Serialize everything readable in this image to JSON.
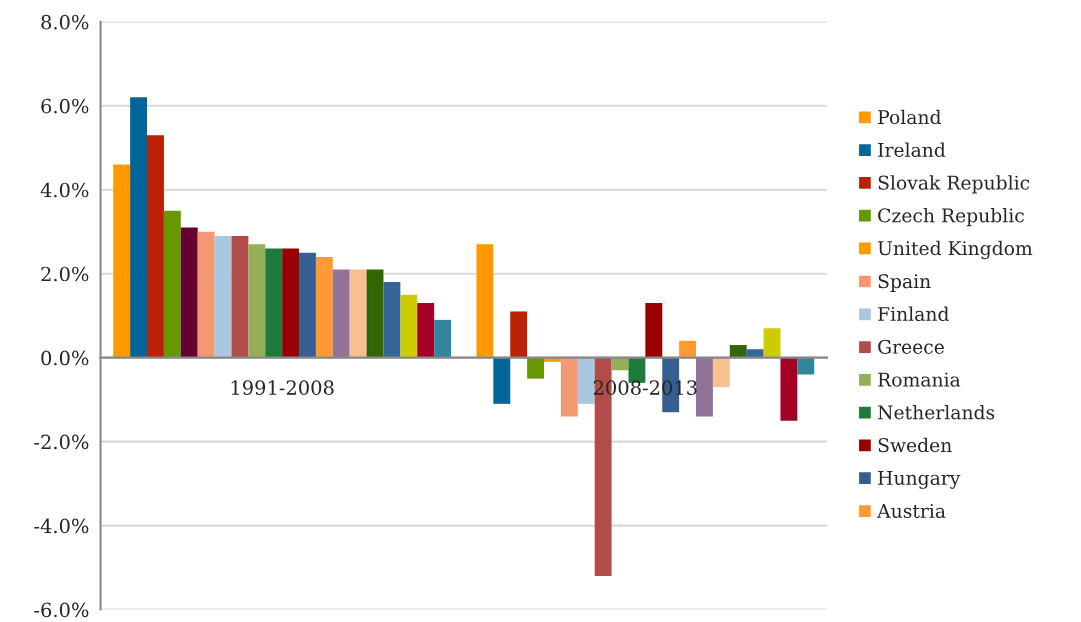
{
  "chart_data": {
    "type": "bar",
    "categories": [
      "1991-2008",
      "2008-2013"
    ],
    "series": [
      {
        "name": "Poland",
        "color": "#ff9900",
        "values": [
          4.6,
          2.7
        ]
      },
      {
        "name": "Ireland",
        "color": "#006699",
        "values": [
          6.2,
          -1.1
        ]
      },
      {
        "name": "Slovak Republic",
        "color": "#bb2205",
        "values": [
          5.3,
          1.1
        ]
      },
      {
        "name": "Czech Republic",
        "color": "#669900",
        "values": [
          3.5,
          -0.5
        ]
      },
      {
        "name": "United Kingdom",
        "color": "#ff9900",
        "colors": [
          "#660033",
          "#ff9900"
        ],
        "values": [
          3.1,
          -0.1
        ]
      },
      {
        "name": "Spain",
        "color": "#f49874",
        "values": [
          3.0,
          -1.4
        ]
      },
      {
        "name": "Finland",
        "color": "#a9c8e0",
        "values": [
          2.9,
          -1.1
        ]
      },
      {
        "name": "Greece",
        "color": "#b24c4a",
        "values": [
          2.9,
          -5.2
        ]
      },
      {
        "name": "Romania",
        "color": "#93b056",
        "values": [
          2.7,
          -0.3
        ]
      },
      {
        "name": "Netherlands",
        "color": "#1e7b3c",
        "values": [
          2.6,
          -0.6
        ]
      },
      {
        "name": "Sweden",
        "color": "#990000",
        "values": [
          2.6,
          1.3
        ]
      },
      {
        "name": "Hungary",
        "color": "#365f91",
        "values": [
          2.5,
          -1.3
        ]
      },
      {
        "name": "Austria",
        "color": "#ff9933",
        "values": [
          2.4,
          0.4
        ]
      },
      {
        "color": "#917299",
        "values": [
          2.1,
          -1.4
        ]
      },
      {
        "color": "#f9c08f",
        "values": [
          2.1,
          -0.7
        ]
      },
      {
        "color": "#336600",
        "values": [
          2.1,
          0.3
        ]
      },
      {
        "color": "#336699",
        "values": [
          1.8,
          0.2
        ]
      },
      {
        "color": "#cccc00",
        "values": [
          1.5,
          0.7
        ]
      },
      {
        "color": "#a50026",
        "values": [
          1.3,
          -1.5
        ]
      },
      {
        "color": "#31859c",
        "values": [
          0.9,
          -0.4
        ]
      }
    ],
    "ylim": [
      -6,
      8
    ],
    "yticks": [
      {
        "value": -6,
        "label": "-6.0%"
      },
      {
        "value": -4,
        "label": "-4.0%"
      },
      {
        "value": -2,
        "label": "-2.0%"
      },
      {
        "value": 0,
        "label": "0.0%"
      },
      {
        "value": 2,
        "label": "2.0%"
      },
      {
        "value": 4,
        "label": "4.0%"
      },
      {
        "value": 6,
        "label": "6.0%"
      },
      {
        "value": 8,
        "label": "8.0%"
      }
    ],
    "grid": "y",
    "legend": "right"
  }
}
